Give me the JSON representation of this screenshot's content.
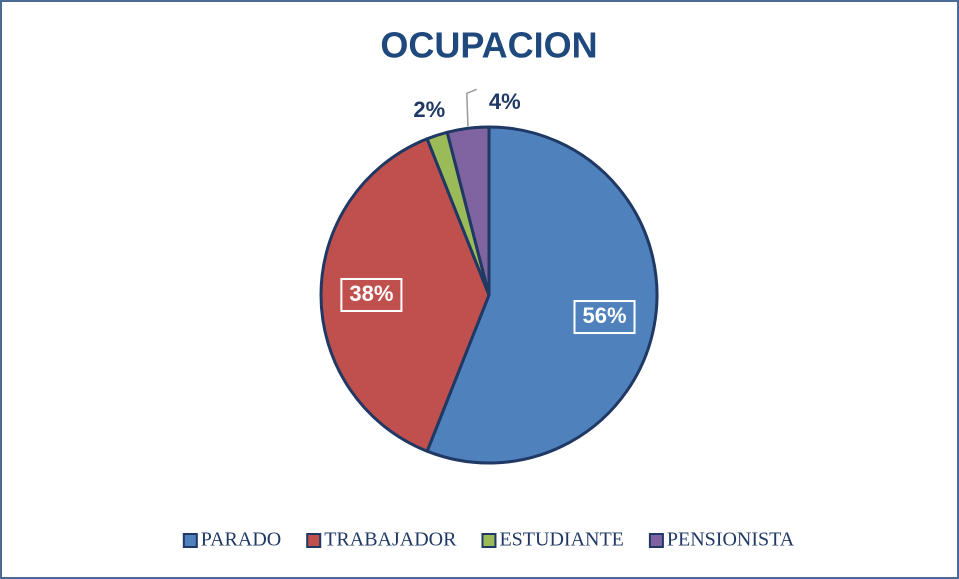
{
  "chart_data": {
    "type": "pie",
    "title": "OCUPACION",
    "categories": [
      "PARADO",
      "TRABAJADOR",
      "ESTUDIANTE",
      "PENSIONISTA"
    ],
    "values": [
      56,
      38,
      2,
      4
    ],
    "value_labels": [
      "56%",
      "38%",
      "2%",
      "4%"
    ],
    "colors": [
      "#4F81BD",
      "#C0504D",
      "#9BBB59",
      "#8064A2"
    ],
    "legend": "bottom"
  }
}
